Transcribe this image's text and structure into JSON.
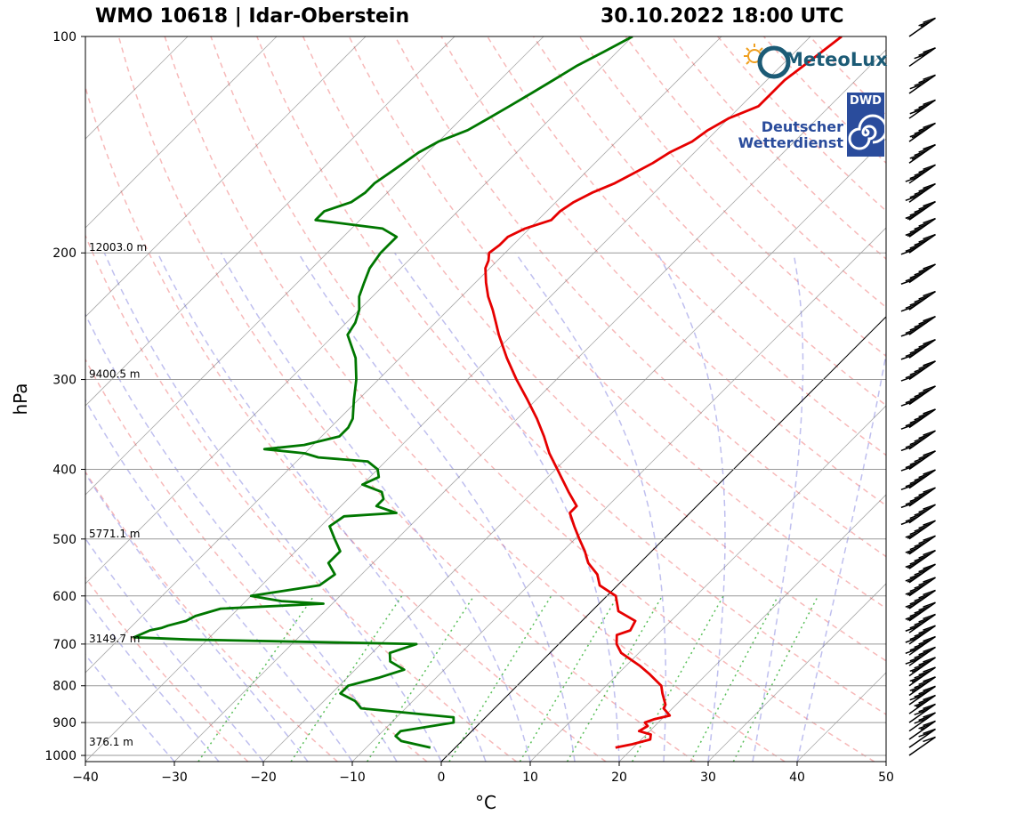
{
  "header": {
    "station": "WMO 10618 | Idar-Oberstein",
    "datetime": "30.10.2022 18:00 UTC"
  },
  "logos": {
    "meteolux": "MeteoLux",
    "dwd_abbrev": "DWD",
    "dwd_line1": "Deutscher",
    "dwd_line2": "Wetterdienst"
  },
  "colors": {
    "temperature": "#e60000",
    "dewpoint": "#007700",
    "dry_adiabat": "#f08080",
    "moist_adiabat": "#8080e0",
    "mixing_ratio": "#22aa22",
    "isotherm": "#666666"
  },
  "chart_data": {
    "type": "skew-t",
    "xlabel": "°C",
    "ylabel": "hPa",
    "xlim": [
      -40,
      50
    ],
    "ylim": [
      1020,
      100
    ],
    "x_ticks": [
      -40,
      -30,
      -20,
      -10,
      0,
      10,
      20,
      30,
      40,
      50
    ],
    "x_tick_labels": [
      "−40",
      "−30",
      "−20",
      "−10",
      "0",
      "10",
      "20",
      "30",
      "40",
      "50"
    ],
    "y_ticks": [
      1000,
      900,
      800,
      700,
      600,
      500,
      400,
      300,
      200,
      100
    ],
    "y_tick_labels": [
      "1000",
      "900",
      "800",
      "700",
      "600",
      "500",
      "400",
      "300",
      "200",
      "100"
    ],
    "height_labels": [
      {
        "p": 200,
        "text": "12003.0 m"
      },
      {
        "p": 300,
        "text": "9400.5 m"
      },
      {
        "p": 500,
        "text": "5771.1 m"
      },
      {
        "p": 700,
        "text": "3149.7 m"
      },
      {
        "p": 975,
        "text": "376.1 m"
      }
    ],
    "series": [
      {
        "name": "Temperature",
        "p": [
          975,
          965,
          950,
          935,
          925,
          910,
          900,
          890,
          880,
          860,
          850,
          820,
          800,
          770,
          750,
          720,
          700,
          680,
          670,
          650,
          630,
          600,
          580,
          560,
          540,
          520,
          500,
          480,
          460,
          450,
          430,
          410,
          400,
          380,
          360,
          340,
          320,
          300,
          280,
          260,
          250,
          240,
          230,
          220,
          210,
          205,
          200,
          195,
          190,
          185,
          180,
          175,
          170,
          165,
          160,
          155,
          150,
          145,
          140,
          135,
          130,
          125,
          120,
          115,
          110,
          105,
          100
        ],
        "t": [
          18.0,
          19.5,
          21.0,
          20.5,
          18.8,
          19.2,
          18.5,
          19.2,
          20.5,
          19.0,
          18.8,
          17.2,
          16.2,
          13.5,
          11.5,
          8.0,
          6.5,
          5.5,
          6.5,
          6.0,
          3.0,
          1.0,
          -2.0,
          -3.5,
          -5.8,
          -7.5,
          -9.5,
          -11.5,
          -13.5,
          -13.5,
          -16.0,
          -18.5,
          -19.8,
          -22.5,
          -25.0,
          -27.8,
          -31.0,
          -34.5,
          -38.0,
          -41.5,
          -43.2,
          -45.0,
          -47.0,
          -48.8,
          -50.5,
          -51.0,
          -51.8,
          -51.5,
          -51.5,
          -50.5,
          -48.5,
          -48.5,
          -48.0,
          -47.0,
          -45.5,
          -44.5,
          -43.5,
          -42.8,
          -41.5,
          -41.0,
          -40.0,
          -38.0,
          -38.0,
          -38.0,
          -37.5,
          -37.0,
          -36.5
        ]
      },
      {
        "name": "Dewpoint",
        "p": [
          975,
          955,
          940,
          925,
          900,
          885,
          860,
          840,
          820,
          800,
          780,
          760,
          740,
          720,
          700,
          690,
          685,
          670,
          665,
          660,
          650,
          640,
          625,
          615,
          610,
          605,
          600,
          580,
          560,
          540,
          520,
          500,
          480,
          465,
          460,
          450,
          440,
          430,
          420,
          410,
          400,
          390,
          385,
          380,
          375,
          370,
          360,
          350,
          340,
          320,
          300,
          280,
          260,
          250,
          240,
          230,
          220,
          210,
          200,
          195,
          190,
          185,
          180,
          175,
          170,
          165,
          160,
          155,
          150,
          145,
          140,
          135,
          130,
          125,
          120,
          115,
          110,
          105,
          100
        ],
        "td": [
          -2.8,
          -6.8,
          -8.0,
          -8.0,
          -3.0,
          -3.6,
          -15.0,
          -16.5,
          -19.0,
          -19.0,
          -16.5,
          -14.5,
          -17.0,
          -18.0,
          -16.0,
          -42.0,
          -48.5,
          -47.5,
          -46.5,
          -46.0,
          -44.5,
          -44.0,
          -42.0,
          -31.0,
          -36.0,
          -38.0,
          -40.0,
          -33.5,
          -33.0,
          -35.0,
          -35.0,
          -37.0,
          -39.0,
          -38.5,
          -33.0,
          -36.0,
          -36.0,
          -37.0,
          -40.0,
          -39.0,
          -40.0,
          -42.0,
          -48.0,
          -50.0,
          -55.0,
          -51.0,
          -48.0,
          -48.0,
          -48.5,
          -50.5,
          -52.5,
          -55.0,
          -58.5,
          -59.0,
          -60.0,
          -61.5,
          -62.5,
          -63.5,
          -64.0,
          -64.0,
          -64.0,
          -66.5,
          -75.0,
          -75.0,
          -73.0,
          -72.5,
          -72.5,
          -72.0,
          -71.5,
          -71.0,
          -70.0,
          -68.0,
          -67.0,
          -66.0,
          -65.0,
          -64.0,
          -63.0,
          -61.5,
          -60.0
        ]
      }
    ],
    "background_lines": {
      "isotherms_c": [
        -110,
        -100,
        -90,
        -80,
        -70,
        -60,
        -50,
        -40,
        -30,
        -20,
        -10,
        0,
        10,
        20,
        30,
        40,
        50
      ],
      "dry_adiabats_theta_k": [
        250,
        260,
        270,
        280,
        290,
        300,
        310,
        320,
        330,
        340,
        350,
        360,
        370,
        380,
        390,
        400,
        410,
        420,
        430,
        440,
        450
      ],
      "moist_adiabats_start_c": [
        -30,
        -25,
        -20,
        -15,
        -10,
        -5,
        0,
        5,
        10,
        15,
        20,
        25,
        30,
        35,
        40
      ],
      "mixing_ratios_g_kg": [
        0.4,
        1,
        2,
        4,
        7,
        10,
        16,
        24,
        32
      ]
    },
    "wind_barbs_p": [
      1000,
      975,
      950,
      925,
      900,
      875,
      850,
      825,
      800,
      775,
      750,
      725,
      700,
      675,
      650,
      625,
      600,
      575,
      550,
      525,
      500,
      475,
      450,
      425,
      400,
      375,
      350,
      325,
      300,
      280,
      260,
      240,
      220,
      200,
      190,
      180,
      170,
      160,
      150,
      140,
      130,
      120,
      110,
      100
    ],
    "wind_speed_kt": [
      10,
      20,
      25,
      30,
      30,
      35,
      40,
      45,
      45,
      45,
      50,
      50,
      50,
      50,
      55,
      55,
      55,
      55,
      55,
      55,
      55,
      60,
      60,
      60,
      60,
      60,
      60,
      60,
      60,
      60,
      60,
      60,
      60,
      60,
      55,
      55,
      50,
      50,
      45,
      45,
      40,
      40,
      30,
      25
    ]
  }
}
